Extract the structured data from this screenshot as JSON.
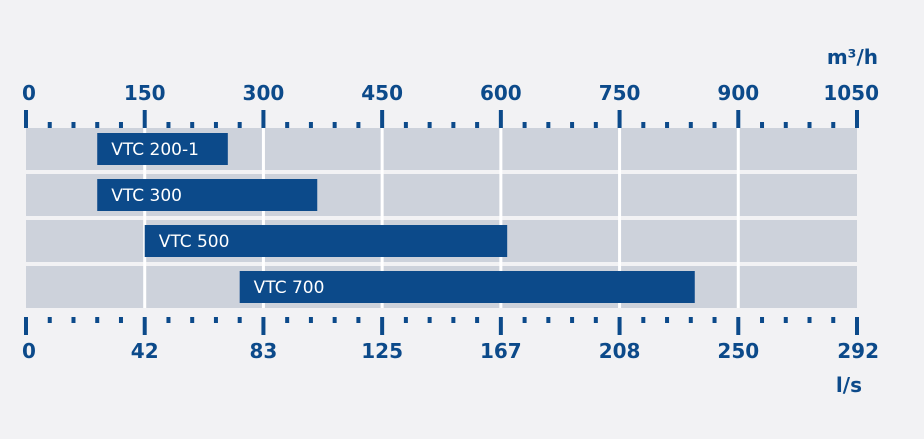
{
  "chart_data": {
    "type": "bar",
    "orientation": "horizontal",
    "series": [
      {
        "name": "VTC 200-1",
        "range_m3h": [
          90,
          255
        ]
      },
      {
        "name": "VTC 300",
        "range_m3h": [
          90,
          368
        ]
      },
      {
        "name": "VTC 500",
        "range_m3h": [
          150,
          608
        ]
      },
      {
        "name": "VTC 700",
        "range_m3h": [
          270,
          845
        ]
      }
    ],
    "top_axis": {
      "unit": "m³/h",
      "range": [
        0,
        1050
      ],
      "ticks": [
        "0",
        "150",
        "300",
        "450",
        "600",
        "750",
        "900",
        "1050"
      ]
    },
    "bottom_axis": {
      "unit": "l/s",
      "range": [
        0,
        292
      ],
      "ticks": [
        "0",
        "42",
        "83",
        "125",
        "167",
        "208",
        "250",
        "292"
      ]
    },
    "grid": true,
    "colors": {
      "bar": "#0c4a8a",
      "axis": "#0c4a8a",
      "row_band": "#cdd2db",
      "background": "#f2f2f4",
      "grid_line": "#ffffff",
      "bar_text": "#ffffff"
    }
  }
}
